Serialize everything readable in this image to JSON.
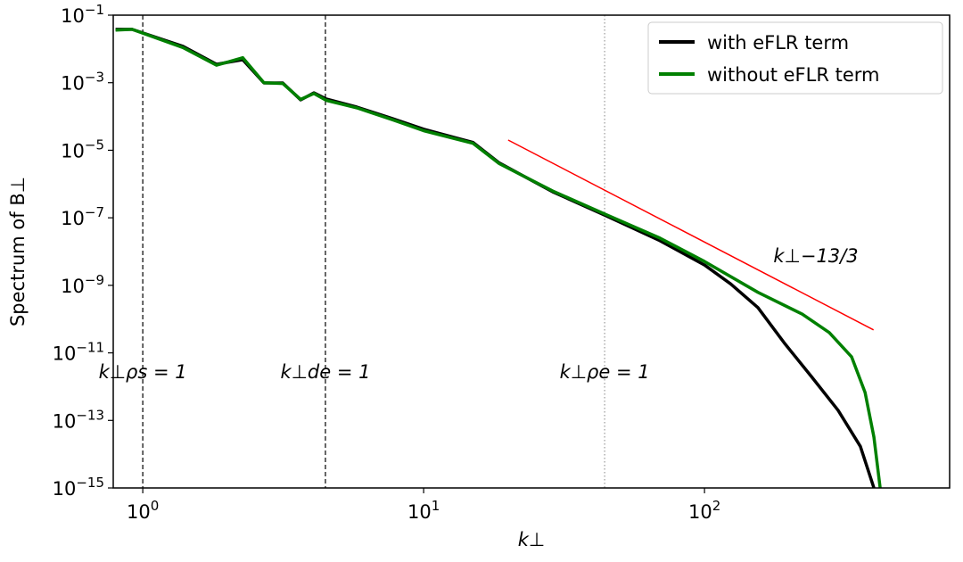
{
  "chart_data": {
    "type": "line",
    "x_label": "k⊥",
    "y_label": "Spectrum of B⊥",
    "log_x": true,
    "log_y": true,
    "xlim": [
      0.785,
      746
    ],
    "ylim": [
      1e-15,
      0.1
    ],
    "xticks": [
      {
        "value": 1,
        "label": "100"
      },
      {
        "value": 10,
        "label": "101"
      },
      {
        "value": 100,
        "label": "102"
      }
    ],
    "yticks": [
      {
        "value": 0.1,
        "label": "10−1"
      },
      {
        "value": 0.001,
        "label": "10−3"
      },
      {
        "value": 1e-05,
        "label": "10−5"
      },
      {
        "value": 1e-07,
        "label": "10−7"
      },
      {
        "value": 1e-09,
        "label": "10−9"
      },
      {
        "value": 1e-11,
        "label": "10−11"
      },
      {
        "value": 1e-13,
        "label": "10−13"
      },
      {
        "value": 1e-15,
        "label": "10−15"
      }
    ],
    "legend": "upper right",
    "series": [
      {
        "name": "with eFLR term",
        "color": "#000000",
        "x": [
          0.8,
          0.916,
          1.39,
          1.83,
          2.27,
          2.7,
          3.15,
          3.65,
          4.07,
          4.5,
          5.78,
          7.74,
          10,
          15,
          18.6,
          28.8,
          44.1,
          69.4,
          100,
          124,
          155,
          193,
          240,
          299,
          359,
          401
        ],
        "values": [
          0.038,
          0.038,
          0.012,
          0.0035,
          0.0048,
          0.00098,
          0.00098,
          0.00031,
          0.0005,
          0.00033,
          0.00019,
          8.7e-05,
          4.2e-05,
          1.7e-05,
          4.2e-06,
          5.9e-07,
          1.2e-07,
          2.1e-08,
          4e-09,
          1.1e-09,
          2.2e-10,
          1.9e-11,
          2e-12,
          2e-13,
          1.7e-14,
          1e-15
        ]
      },
      {
        "name": "without eFLR term",
        "color": "#008000",
        "x": [
          0.8,
          0.916,
          1.39,
          1.83,
          2.27,
          2.7,
          3.15,
          3.65,
          4.07,
          4.5,
          5.78,
          7.74,
          10,
          15,
          18.6,
          28.8,
          44.1,
          69.4,
          100,
          155,
          223,
          278,
          334,
          373,
          401,
          422
        ],
        "values": [
          0.036,
          0.038,
          0.011,
          0.0033,
          0.0055,
          0.001,
          0.00095,
          0.00032,
          0.00048,
          0.0003,
          0.00018,
          8e-05,
          3.8e-05,
          1.6e-05,
          4e-06,
          6.2e-07,
          1.3e-07,
          2.5e-08,
          5.1e-09,
          6.2e-10,
          1.4e-10,
          4e-11,
          7.6e-12,
          6.7e-13,
          3.2e-14,
          1e-15
        ]
      }
    ],
    "vlines": [
      {
        "x": 1,
        "style": "dashed",
        "label": "k⊥ρs = 1"
      },
      {
        "x": 4.47,
        "style": "dashed",
        "label": "k⊥de = 1"
      },
      {
        "x": 44.1,
        "style": "dotted",
        "label": "k⊥ρe = 1"
      }
    ],
    "reference_line": {
      "x": [
        20,
        400
      ],
      "values": [
        2e-05,
        4.8e-11
      ],
      "color": "#ff0000",
      "label": "k⊥−13/3"
    }
  }
}
